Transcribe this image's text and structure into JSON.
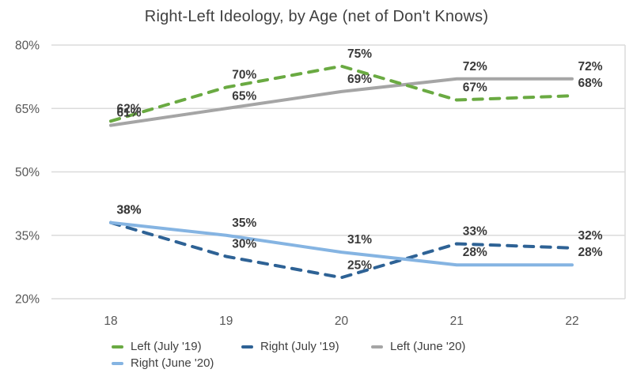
{
  "title": "Right-Left Ideology, by Age (net of Don't Knows)",
  "chart_data": {
    "type": "line",
    "title": "Right-Left Ideology, by Age (net of Don't Knows)",
    "x_categories": [
      "18",
      "19",
      "20",
      "21",
      "22"
    ],
    "xlabel": "",
    "ylabel": "",
    "ylim": [
      20,
      80
    ],
    "grid": "horizontal",
    "legend_position": "bottom",
    "y_ticks": [
      {
        "value": 80,
        "label": "80%"
      },
      {
        "value": 65,
        "label": "65%"
      },
      {
        "value": 50,
        "label": "50%"
      },
      {
        "value": 35,
        "label": "35%"
      },
      {
        "value": 20,
        "label": "20%"
      }
    ],
    "series": [
      {
        "name": "Left (July '19)",
        "color": "#6AAA42",
        "line_style": "dashed",
        "values": [
          62,
          70,
          75,
          67,
          68
        ],
        "point_labels": [
          "62%",
          "70%",
          "75%",
          "67%",
          "68%"
        ]
      },
      {
        "name": "Right (July '19)",
        "color": "#2E6295",
        "line_style": "dashed",
        "values": [
          38,
          30,
          25,
          33,
          32
        ],
        "point_labels": [
          "38%",
          "30%",
          "25%",
          "33%",
          "32%"
        ]
      },
      {
        "name": "Left (June '20)",
        "color": "#A5A5A5",
        "line_style": "solid",
        "values": [
          61,
          65,
          69,
          72,
          72
        ],
        "point_labels": [
          "61%",
          "65%",
          "69%",
          "72%",
          "72%"
        ]
      },
      {
        "name": "Right (June '20)",
        "color": "#85B4E2",
        "line_style": "solid",
        "values": [
          38,
          35,
          31,
          28,
          28
        ],
        "point_labels": [
          "38%",
          "35%",
          "31%",
          "28%",
          "28%"
        ]
      }
    ],
    "style": {
      "grid_color": "#DBDBDB",
      "axis_text_color": "#565656",
      "label_text_color": "#3A3A3A",
      "title_color": "#404040"
    }
  }
}
